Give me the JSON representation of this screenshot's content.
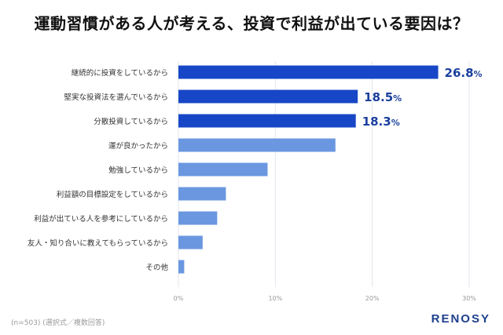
{
  "title": "運動習慣がある人が考える、投資で利益が出ている要因は？",
  "footnote": "(n=503) (選択式／複数回答)",
  "brand": "RENOSY",
  "colors": {
    "highlight": "#1747c7",
    "normal": "#6a97e0",
    "highlight_label": "#1a3f9e",
    "grid": "#e2e6ec",
    "tick": "#9a9a9a",
    "category": "#333333",
    "brand": "#1d3f8c"
  },
  "chart_data": {
    "type": "bar",
    "orientation": "horizontal",
    "title": "運動習慣がある人が考える、投資で利益が出ている要因は？",
    "categories": [
      "継続的に投資をしているから",
      "堅実な投資法を選んでいるから",
      "分散投資しているから",
      "運が良かったから",
      "勉強しているから",
      "利益額の目標設定をしているから",
      "利益が出ている人を参考にしているから",
      "友人・知り合いに教えてもらっているから",
      "その他"
    ],
    "values": [
      26.8,
      18.5,
      18.3,
      16.2,
      9.2,
      4.9,
      4.0,
      2.5,
      0.6
    ],
    "unit": "%",
    "highlighted": [
      true,
      true,
      true,
      false,
      false,
      false,
      false,
      false,
      false
    ],
    "data_labels": [
      "26.8",
      "18.5",
      "18.3",
      "",
      "",
      "",
      "",
      "",
      ""
    ],
    "xlim": [
      0,
      30
    ],
    "xticks": [
      0,
      10,
      20,
      30
    ],
    "xtick_labels": [
      "0%",
      "10%",
      "20%",
      "30%"
    ],
    "grid": true
  }
}
